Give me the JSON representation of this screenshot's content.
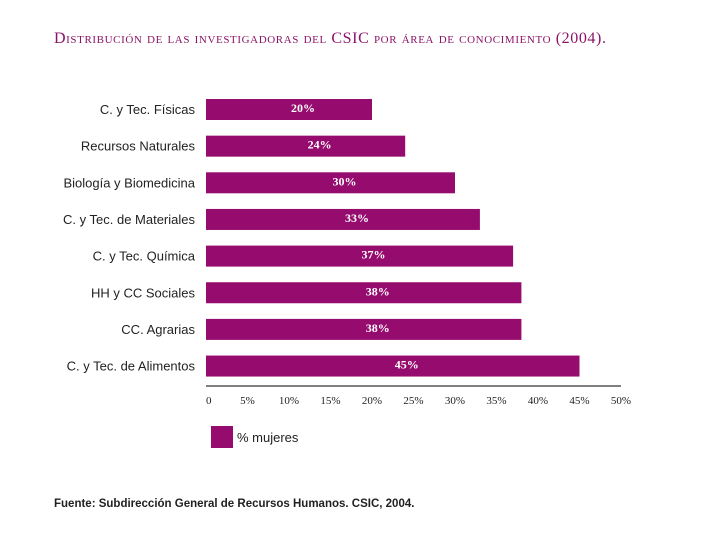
{
  "chart_data": {
    "type": "bar",
    "orientation": "horizontal",
    "title": "Distribución de las investigadoras del CSIC por área de conocimiento (2004).",
    "categories": [
      "C. y Tec. Físicas",
      "Recursos Naturales",
      "Biología y Biomedicina",
      "C. y Tec. de Materiales",
      "C. y Tec. Química",
      "HH y CC Sociales",
      "CC. Agrarias",
      "C. y Tec. de Alimentos"
    ],
    "values": [
      20,
      24,
      30,
      33,
      37,
      38,
      38,
      45
    ],
    "value_labels": [
      "20%",
      "24%",
      "30%",
      "33%",
      "37%",
      "38%",
      "38%",
      "45%"
    ],
    "series_name": "% mujeres",
    "xlim": [
      0,
      50
    ],
    "xticks": [
      0,
      5,
      10,
      15,
      20,
      25,
      30,
      35,
      40,
      45,
      50
    ],
    "xtick_labels": [
      "0",
      "5%",
      "10%",
      "15%",
      "20%",
      "25%",
      "30%",
      "35%",
      "40%",
      "45%",
      "50%"
    ],
    "xlabel": "",
    "ylabel": "",
    "legend_position": "bottom-left",
    "grid": false
  },
  "colors": {
    "bar": "#950b6e",
    "title": "#8c1468",
    "axis": "#333333"
  },
  "source": "Fuente: Subdirección General de Recursos Humanos. CSIC, 2004."
}
